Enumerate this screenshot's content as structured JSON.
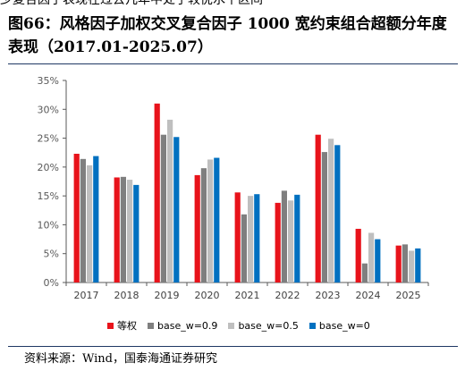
{
  "header": {
    "clipped_text": "少复合因子表现在过去几年中处于较优水平区间",
    "title": "图66：风格因子加权交叉复合因子 1000 宽约束组合超额分年度表现（2017.01-2025.07）"
  },
  "source": "资料来源：Wind，国泰海通证券研究",
  "colors": {
    "rule": "#1f3864",
    "axis": "#595959",
    "tick_text": "#595959"
  },
  "chart_data": {
    "type": "bar",
    "categories": [
      "2017",
      "2018",
      "2019",
      "2020",
      "2021",
      "2022",
      "2023",
      "2024",
      "2025"
    ],
    "y_tick_labels": [
      "0%",
      "5%",
      "10%",
      "15%",
      "20%",
      "25%",
      "30%",
      "35%"
    ],
    "ylim": [
      0,
      35
    ],
    "grid": false,
    "legend_position": "bottom",
    "series": [
      {
        "name": "等权",
        "color": "#e8131b",
        "values": [
          22.3,
          18.2,
          31.0,
          18.6,
          15.6,
          13.8,
          25.6,
          9.3,
          6.4
        ]
      },
      {
        "name": "base_w=0.9",
        "color": "#7f7f7f",
        "values": [
          21.4,
          18.3,
          25.6,
          19.8,
          11.8,
          15.9,
          22.6,
          3.3,
          6.6
        ]
      },
      {
        "name": "base_w=0.5",
        "color": "#bfbfbf",
        "values": [
          20.3,
          17.8,
          28.2,
          21.3,
          15.0,
          14.2,
          24.9,
          8.6,
          5.5
        ]
      },
      {
        "name": "base_w=0",
        "color": "#0070c0",
        "values": [
          21.9,
          16.9,
          25.2,
          21.6,
          15.3,
          15.2,
          23.8,
          7.5,
          5.9
        ]
      }
    ]
  }
}
